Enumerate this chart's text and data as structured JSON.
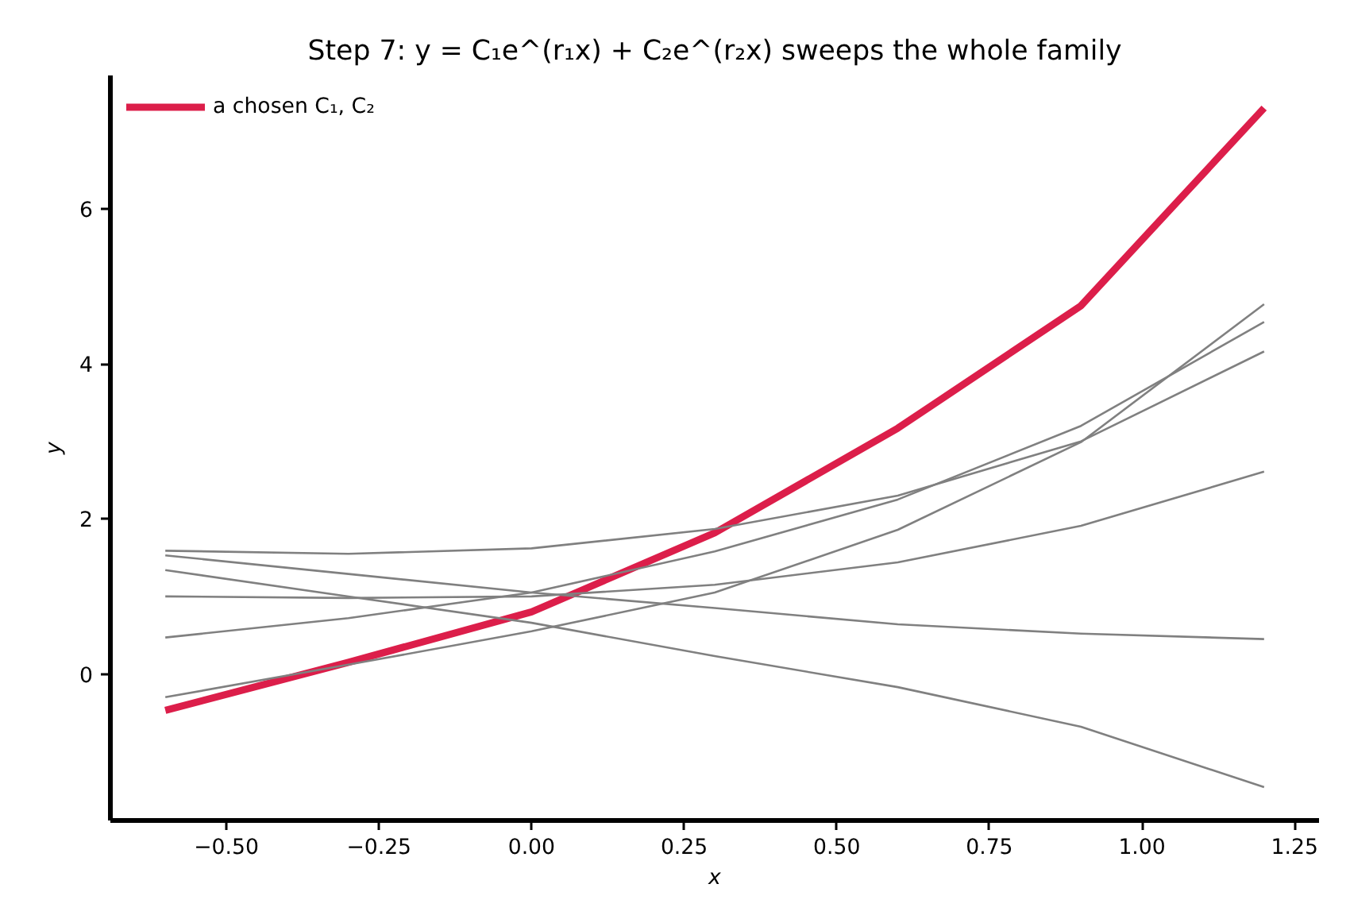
{
  "chart_data": {
    "type": "line",
    "title": "Step 7: y = C₁e^(r₁x) + C₂e^(r₂x) sweeps the whole family",
    "xlabel": "x",
    "ylabel": "y",
    "x": [
      -0.6,
      -0.3,
      0,
      0.3,
      0.6,
      0.9,
      1.2
    ],
    "series": [
      {
        "color": "#808080",
        "values": [
          1.59,
          1.55,
          1.62,
          1.87,
          2.3,
          3.0,
          4.16
        ]
      },
      {
        "color": "#808080",
        "values": [
          1.53,
          1.29,
          1.05,
          0.85,
          0.64,
          0.52,
          0.45
        ]
      },
      {
        "color": "#808080",
        "values": [
          1.34,
          1.0,
          0.66,
          0.23,
          -0.17,
          -0.68,
          -1.46
        ]
      },
      {
        "color": "#808080",
        "values": [
          1.0,
          0.98,
          1.0,
          1.15,
          1.44,
          1.91,
          2.61
        ]
      },
      {
        "color": "#808080",
        "values": [
          0.47,
          0.72,
          1.05,
          1.58,
          2.25,
          3.2,
          4.54
        ]
      },
      {
        "color": "#808080",
        "values": [
          -0.3,
          0.12,
          0.55,
          1.05,
          1.86,
          2.99,
          4.77
        ]
      },
      {
        "name": "a chosen C₁, C₂",
        "color": "#dc1e4a",
        "values": [
          -0.47,
          0.15,
          0.8,
          1.82,
          3.17,
          4.75,
          7.3
        ]
      }
    ],
    "xlim": [
      -0.69,
      1.29
    ],
    "ylim": [
      -1.89,
      7.72
    ],
    "xticks": [
      {
        "value": -0.5,
        "label": "−0.50"
      },
      {
        "value": -0.25,
        "label": "−0.25"
      },
      {
        "value": 0,
        "label": "0.00"
      },
      {
        "value": 0.25,
        "label": "0.25"
      },
      {
        "value": 0.5,
        "label": "0.50"
      },
      {
        "value": 0.75,
        "label": "0.75"
      },
      {
        "value": 1.0,
        "label": "1.00"
      },
      {
        "value": 1.25,
        "label": "1.25"
      }
    ],
    "yticks": [
      0,
      2,
      4,
      6
    ],
    "grid": false,
    "legend": "top left",
    "marker": "none",
    "line_style": "solid"
  }
}
